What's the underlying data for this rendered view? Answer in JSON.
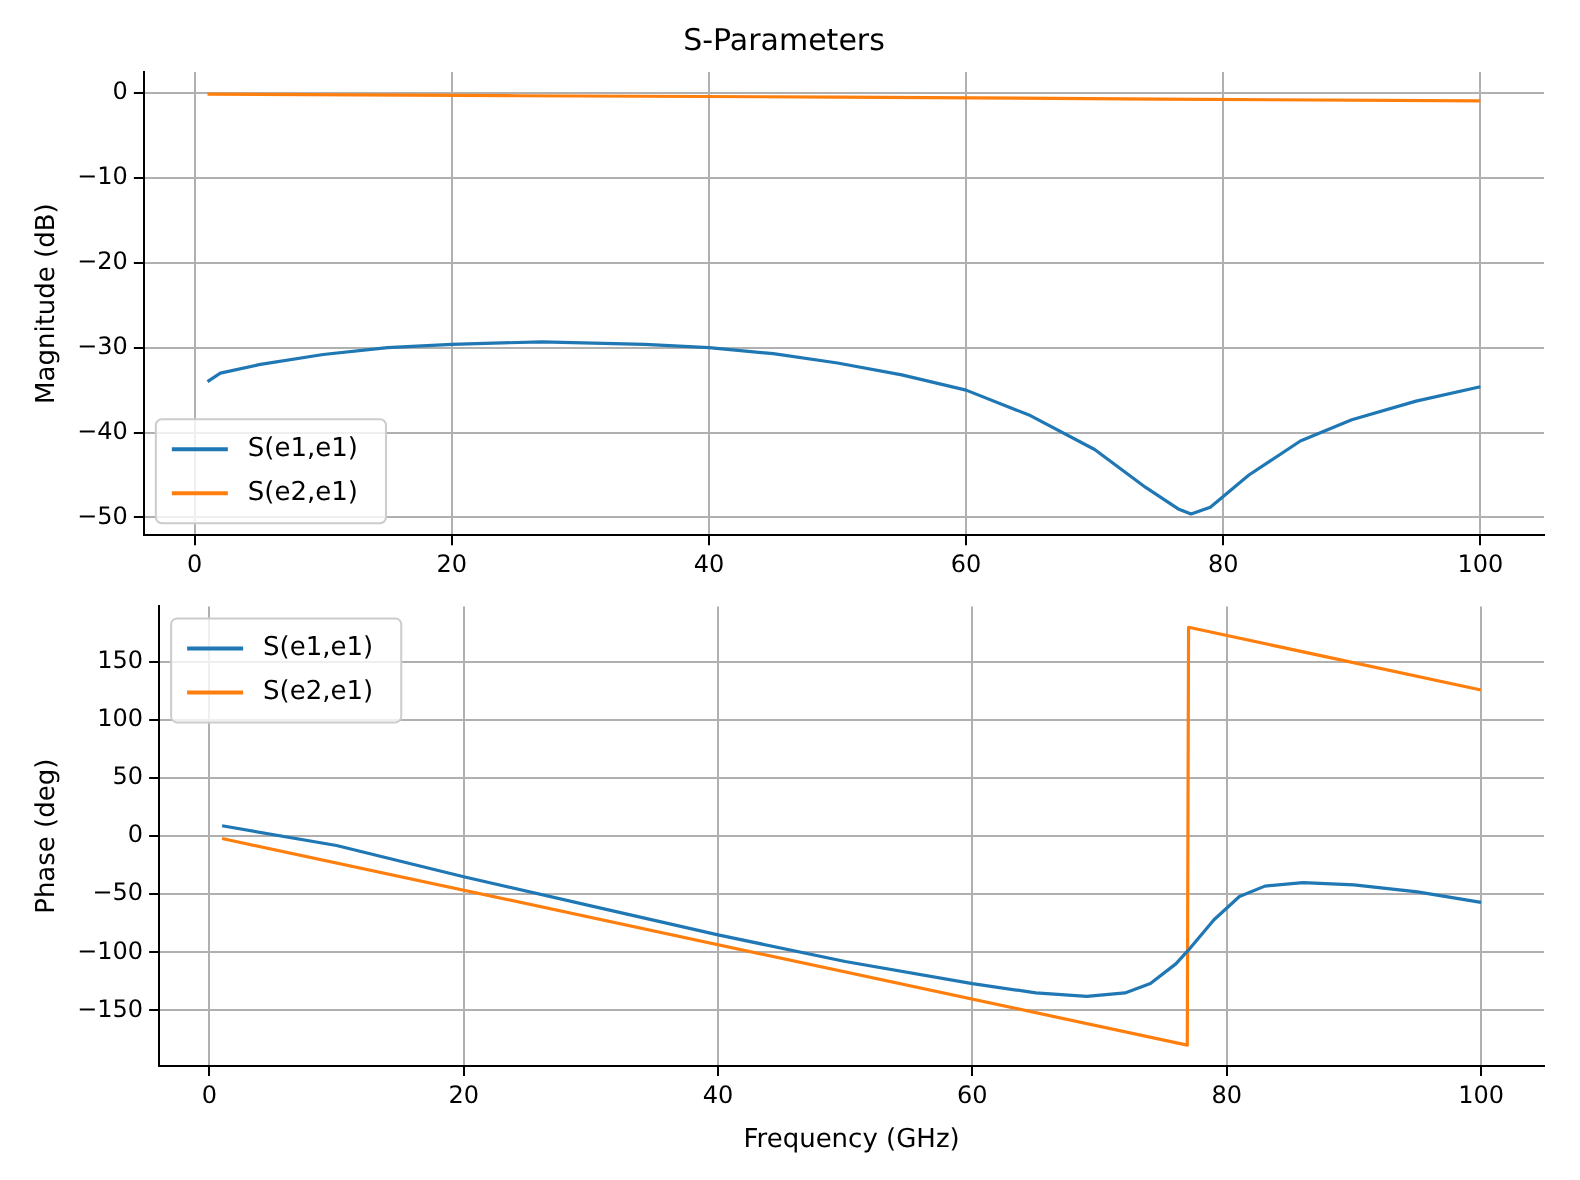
{
  "chart_data": [
    {
      "type": "line",
      "title": "S-Parameters",
      "ylabel": "Magnitude (dB)",
      "xlim": [
        -3.95,
        104.95
      ],
      "xticks": [
        0,
        20,
        40,
        60,
        80,
        100
      ],
      "ylim": [
        -52.1,
        2.5
      ],
      "yticks": [
        -50,
        -40,
        -30,
        -20,
        -10,
        0
      ],
      "grid": true,
      "legend": "lower left",
      "series": [
        {
          "name": "S(e1,e1)",
          "color": "#1f77b4",
          "x": [
            1,
            2,
            5,
            10,
            15,
            20,
            27,
            35,
            40,
            45,
            50,
            55,
            60,
            65,
            70,
            74,
            76.5,
            77.5,
            79,
            82,
            86,
            90,
            95,
            100
          ],
          "values": [
            -34,
            -33,
            -32,
            -30.8,
            -30,
            -29.6,
            -29.3,
            -29.6,
            -30,
            -30.7,
            -31.8,
            -33.2,
            -35,
            -38,
            -42,
            -46.5,
            -49,
            -49.6,
            -48.8,
            -45,
            -41,
            -38.5,
            -36.3,
            -34.6
          ]
        },
        {
          "name": "S(e2,e1)",
          "color": "#ff7f0e",
          "x": [
            1,
            25,
            50,
            75,
            100
          ],
          "values": [
            -0.1,
            -0.3,
            -0.45,
            -0.7,
            -0.9
          ]
        }
      ]
    },
    {
      "type": "line",
      "xlabel": "Frequency (GHz)",
      "ylabel": "Phase (deg)",
      "xlim": [
        -3.95,
        104.95
      ],
      "xticks": [
        0,
        20,
        40,
        60,
        80,
        100
      ],
      "ylim": [
        -198,
        198
      ],
      "yticks": [
        -150,
        -100,
        -50,
        0,
        50,
        100,
        150
      ],
      "grid": true,
      "legend": "upper left",
      "series": [
        {
          "name": "S(e1,e1)",
          "color": "#1f77b4",
          "x": [
            1,
            10,
            20,
            30,
            40,
            50,
            60,
            65,
            69,
            72,
            74,
            76,
            77,
            79,
            81,
            83,
            86,
            90,
            95,
            100
          ],
          "values": [
            9,
            -8,
            -35,
            -60,
            -85,
            -108,
            -127,
            -135,
            -138,
            -135,
            -127,
            -110,
            -98,
            -72,
            -52,
            -43,
            -40,
            -42,
            -48,
            -57
          ]
        },
        {
          "name": "S(e2,e1)",
          "color": "#ff7f0e",
          "x": [
            1,
            76.9,
            77,
            100
          ],
          "values": [
            -2,
            -180,
            180,
            126
          ]
        }
      ]
    }
  ]
}
